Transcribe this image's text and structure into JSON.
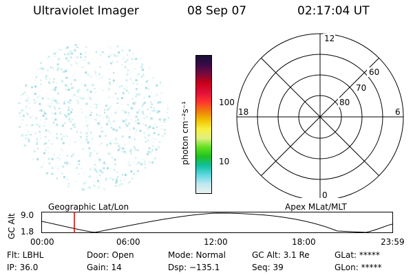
{
  "header": {
    "instrument": "Ultraviolet Imager",
    "date": "08 Sep 07",
    "time": "02:17:04 UT"
  },
  "colorbar": {
    "unit_label": "photon cm⁻²s⁻¹",
    "ticks": [
      "100",
      "10"
    ],
    "colors": [
      "#1a1033",
      "#3a0a4a",
      "#7a0a3a",
      "#c80018",
      "#e0103a",
      "#ff3030",
      "#f07a10",
      "#f0c000",
      "#f8f040",
      "#e0f080",
      "#60e020",
      "#20c020",
      "#10c0a0",
      "#60d8e0",
      "#c0e8f0",
      "#e8f0f0"
    ]
  },
  "polar_plot": {
    "mlt_labels": {
      "top": "12",
      "bottom": "0",
      "left": "18",
      "right": "6"
    },
    "lat_labels": [
      "60",
      "70",
      "80"
    ]
  },
  "timeline": {
    "y_axis_label": "GC Alt",
    "y_ticks": [
      "9.0",
      "1.8"
    ],
    "left_caption": "Geographic Lat/Lon",
    "right_caption": "Apex MLat/MLT",
    "x_ticks": [
      "00:00",
      "06:00",
      "12:00",
      "18:00",
      "23:59"
    ],
    "marker_color": "#d00000"
  },
  "info": {
    "flt": "Flt: LBHL",
    "ip": "IP: 36.0",
    "door": "Door: Open",
    "gain": "Gain: 14",
    "mode": "Mode: Normal",
    "dsp": "Dsp: −135.1",
    "gcalt": "GC Alt: 3.1 Re",
    "seq": "Seq: 39",
    "glat": "GLat: *****",
    "glon": "GLon: *****"
  }
}
